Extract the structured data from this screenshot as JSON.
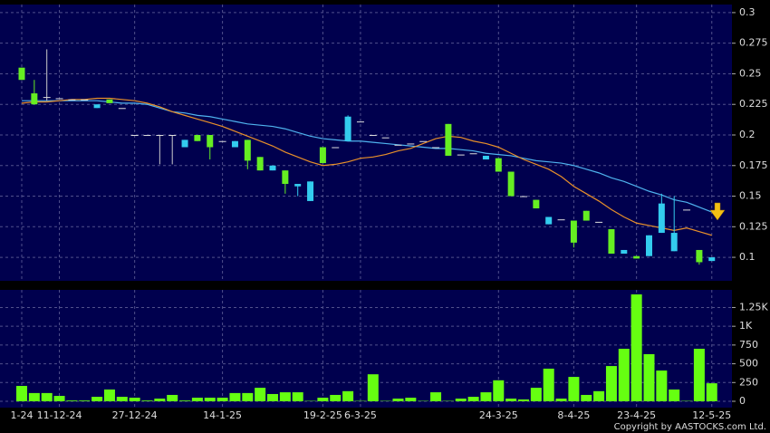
{
  "chart_data": [
    {
      "type": "candlestick",
      "open": [
        0.245,
        0.225,
        0.231,
        0.23,
        0.229,
        0.229,
        0.225,
        0.226,
        0.222,
        0.2,
        0.2,
        0.2,
        0.2,
        0.196,
        0.195,
        0.19,
        0.195,
        0.195,
        0.179,
        0.171,
        0.175,
        0.16,
        0.16,
        0.162,
        0.177,
        0.19,
        0.215,
        0.211,
        0.2,
        0.198,
        0.192,
        0.193,
        0.195,
        0.19,
        0.183,
        0.184,
        0.185,
        0.183,
        0.17,
        0.15,
        0.15,
        0.14,
        0.133,
        0.131,
        0.112,
        0.13,
        0.129,
        0.103,
        0.106,
        0.099,
        0.118,
        0.144,
        0.12,
        0.139,
        0.096,
        0.1
      ],
      "close": [
        0.255,
        0.234,
        0.231,
        0.23,
        0.229,
        0.229,
        0.222,
        0.229,
        0.222,
        0.2,
        0.2,
        0.2,
        0.2,
        0.19,
        0.2,
        0.2,
        0.195,
        0.19,
        0.196,
        0.182,
        0.171,
        0.171,
        0.158,
        0.146,
        0.19,
        0.19,
        0.195,
        0.211,
        0.2,
        0.198,
        0.192,
        0.193,
        0.195,
        0.19,
        0.209,
        0.184,
        0.185,
        0.18,
        0.181,
        0.17,
        0.15,
        0.147,
        0.127,
        0.131,
        0.13,
        0.138,
        0.129,
        0.123,
        0.103,
        0.101,
        0.101,
        0.12,
        0.105,
        0.139,
        0.106,
        0.097
      ],
      "high": [
        0.255,
        0.245,
        0.27,
        0.23,
        0.229,
        0.229,
        0.225,
        0.229,
        0.222,
        0.2,
        0.2,
        0.2,
        0.2,
        0.196,
        0.2,
        0.2,
        0.195,
        0.195,
        0.196,
        0.182,
        0.175,
        0.171,
        0.16,
        0.162,
        0.19,
        0.19,
        0.216,
        0.211,
        0.2,
        0.198,
        0.192,
        0.193,
        0.195,
        0.19,
        0.209,
        0.184,
        0.185,
        0.183,
        0.181,
        0.17,
        0.15,
        0.147,
        0.133,
        0.131,
        0.13,
        0.138,
        0.129,
        0.123,
        0.106,
        0.101,
        0.118,
        0.152,
        0.15,
        0.139,
        0.106,
        0.1
      ],
      "low": [
        0.245,
        0.225,
        0.228,
        0.23,
        0.229,
        0.229,
        0.222,
        0.226,
        0.222,
        0.2,
        0.2,
        0.176,
        0.176,
        0.19,
        0.195,
        0.18,
        0.195,
        0.19,
        0.172,
        0.171,
        0.171,
        0.152,
        0.15,
        0.146,
        0.177,
        0.19,
        0.195,
        0.211,
        0.2,
        0.198,
        0.192,
        0.193,
        0.195,
        0.19,
        0.183,
        0.184,
        0.185,
        0.18,
        0.17,
        0.15,
        0.15,
        0.14,
        0.127,
        0.131,
        0.108,
        0.13,
        0.129,
        0.103,
        0.103,
        0.099,
        0.101,
        0.12,
        0.105,
        0.139,
        0.094,
        0.097
      ],
      "up_color": "#66ee22",
      "down_color": "#33ccee",
      "series": [
        {
          "color": "#4fb3ee",
          "values": [
            0.228,
            0.228,
            0.228,
            0.228,
            0.228,
            0.228,
            0.228,
            0.227,
            0.226,
            0.226,
            0.225,
            0.222,
            0.219,
            0.218,
            0.216,
            0.215,
            0.213,
            0.211,
            0.209,
            0.208,
            0.207,
            0.205,
            0.202,
            0.199,
            0.197,
            0.196,
            0.195,
            0.195,
            0.194,
            0.193,
            0.192,
            0.191,
            0.19,
            0.189,
            0.189,
            0.188,
            0.187,
            0.185,
            0.184,
            0.183,
            0.181,
            0.179,
            0.178,
            0.177,
            0.175,
            0.172,
            0.169,
            0.165,
            0.162,
            0.158,
            0.154,
            0.151,
            0.147,
            0.145,
            0.141,
            0.137
          ]
        },
        {
          "color": "#e8902a",
          "values": [
            0.226,
            0.227,
            0.227,
            0.228,
            0.229,
            0.229,
            0.23,
            0.23,
            0.229,
            0.228,
            0.226,
            0.223,
            0.219,
            0.216,
            0.213,
            0.21,
            0.207,
            0.203,
            0.199,
            0.195,
            0.191,
            0.186,
            0.182,
            0.178,
            0.175,
            0.176,
            0.178,
            0.181,
            0.182,
            0.184,
            0.187,
            0.189,
            0.193,
            0.197,
            0.199,
            0.198,
            0.195,
            0.193,
            0.19,
            0.185,
            0.18,
            0.176,
            0.172,
            0.166,
            0.158,
            0.152,
            0.146,
            0.139,
            0.133,
            0.128,
            0.126,
            0.124,
            0.122,
            0.124,
            0.121,
            0.118
          ]
        }
      ],
      "ylim": [
        0.0808,
        0.3066
      ],
      "yticks": [
        0.1,
        0.125,
        0.15,
        0.175,
        0.2,
        0.225,
        0.25,
        0.275,
        0.3
      ],
      "grid": true
    },
    {
      "type": "bar",
      "categories": [
        "1-24",
        null,
        null,
        "11-12-24",
        null,
        null,
        null,
        null,
        null,
        "27-12-24",
        null,
        null,
        null,
        null,
        null,
        null,
        "14-1-25",
        null,
        null,
        null,
        null,
        null,
        null,
        null,
        "19-2-25",
        null,
        null,
        "6-3-25",
        null,
        null,
        null,
        null,
        null,
        null,
        null,
        null,
        null,
        null,
        "24-3-25",
        null,
        null,
        null,
        null,
        null,
        "8-4-25",
        null,
        null,
        null,
        null,
        "23-4-25",
        null,
        null,
        null,
        null,
        null,
        "12-5-25"
      ],
      "values": [
        205,
        110,
        110,
        72,
        10,
        10,
        60,
        157,
        60,
        48,
        10,
        36,
        85,
        10,
        48,
        48,
        48,
        110,
        110,
        180,
        97,
        120,
        120,
        5,
        48,
        85,
        135,
        5,
        360,
        5,
        36,
        48,
        5,
        120,
        5,
        36,
        60,
        120,
        280,
        36,
        25,
        180,
        435,
        36,
        325,
        85,
        135,
        470,
        700,
        1425,
        628,
        410,
        157,
        5,
        700,
        240
      ],
      "color": "#66ff11",
      "ylim": [
        0,
        1485
      ],
      "yticks": [
        0,
        250,
        500,
        750,
        {
          "value": 1000,
          "label": "1K"
        },
        {
          "value": 1250,
          "label": "1.25K"
        }
      ],
      "grid": true
    }
  ],
  "footer": "Copyright by AASTOCKS.com Ltd."
}
